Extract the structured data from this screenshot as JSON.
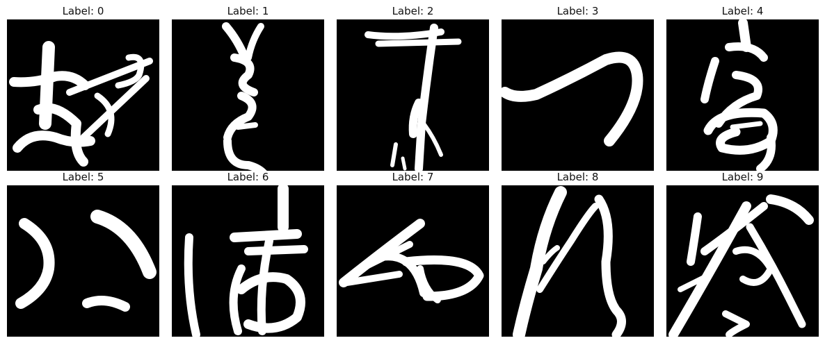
{
  "figure": {
    "panels": [
      {
        "title": "Label: 0",
        "image_content": "handwritten-character-glyph"
      },
      {
        "title": "Label: 1",
        "image_content": "handwritten-character-glyph"
      },
      {
        "title": "Label: 2",
        "image_content": "handwritten-character-glyph"
      },
      {
        "title": "Label: 3",
        "image_content": "handwritten-character-glyph"
      },
      {
        "title": "Label: 4",
        "image_content": "handwritten-character-glyph"
      },
      {
        "title": "Label: 5",
        "image_content": "handwritten-character-glyph"
      },
      {
        "title": "Label: 6",
        "image_content": "handwritten-character-glyph"
      },
      {
        "title": "Label: 7",
        "image_content": "handwritten-character-glyph"
      },
      {
        "title": "Label: 8",
        "image_content": "handwritten-character-glyph"
      },
      {
        "title": "Label: 9",
        "image_content": "handwritten-character-glyph"
      }
    ],
    "colors": {
      "image_background": "#000000",
      "glyph": "#ffffff",
      "page_background": "#ffffff"
    }
  }
}
